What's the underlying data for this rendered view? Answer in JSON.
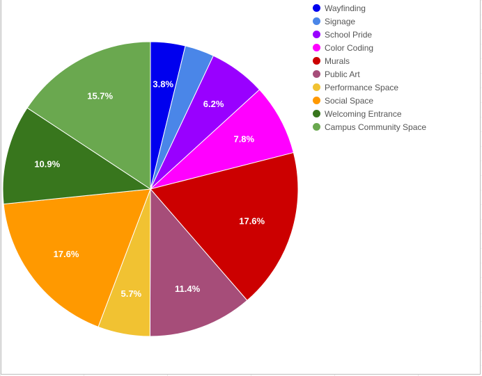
{
  "chart_data": {
    "type": "pie",
    "title": "",
    "legend_position": "top-right",
    "slices": [
      {
        "label": "Wayfinding",
        "value": 3.8,
        "display": "3.8%",
        "color": "#0000ee"
      },
      {
        "label": "Signage",
        "value": 3.2,
        "display": "",
        "color": "#4a86e8"
      },
      {
        "label": "School Pride",
        "value": 6.2,
        "display": "6.2%",
        "color": "#9900ff"
      },
      {
        "label": "Color Coding",
        "value": 7.8,
        "display": "7.8%",
        "color": "#ff00ff"
      },
      {
        "label": "Murals",
        "value": 17.6,
        "display": "17.6%",
        "color": "#cc0000"
      },
      {
        "label": "Public Art",
        "value": 11.4,
        "display": "11.4%",
        "color": "#a64d79"
      },
      {
        "label": "Performance Space",
        "value": 5.7,
        "display": "5.7%",
        "color": "#f1c232"
      },
      {
        "label": "Social Space",
        "value": 17.6,
        "display": "17.6%",
        "color": "#ff9900"
      },
      {
        "label": "Welcoming Entrance",
        "value": 10.9,
        "display": "10.9%",
        "color": "#38761d"
      },
      {
        "label": "Campus Community Space",
        "value": 15.7,
        "display": "15.7%",
        "color": "#6aa84f"
      }
    ]
  }
}
